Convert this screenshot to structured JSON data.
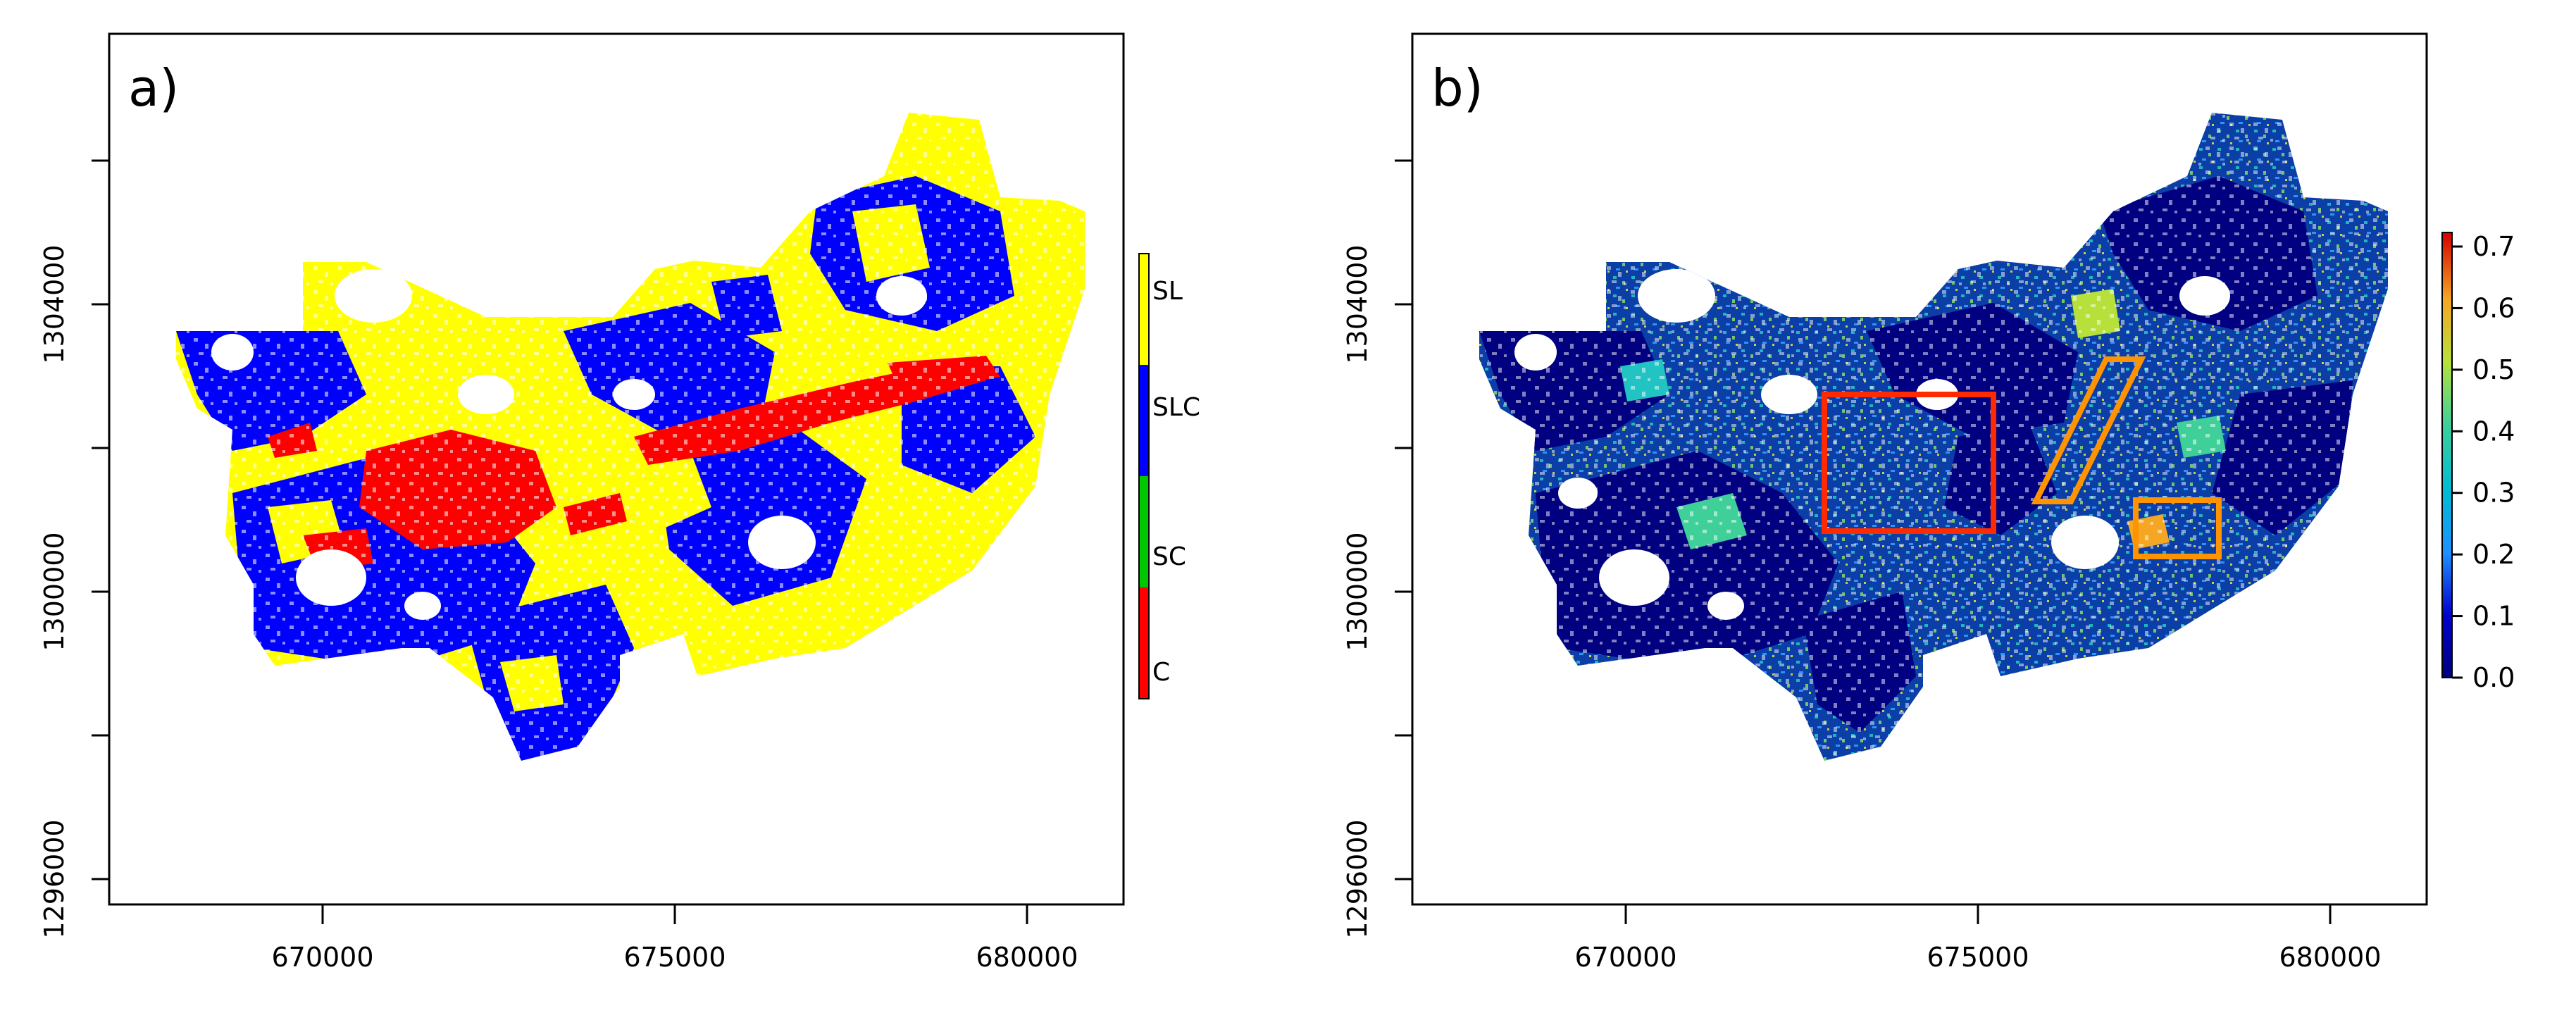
{
  "panels": [
    {
      "label": "a)",
      "type": "categorical",
      "x_ticks": [
        "670000",
        "675000",
        "680000"
      ],
      "y_ticks": [
        "1296000",
        "1300000",
        "1304000"
      ],
      "legend": {
        "entries": [
          {
            "label": "SL",
            "color": "#ffff00"
          },
          {
            "label": "SLC",
            "color": "#0000ff"
          },
          {
            "label": "SC",
            "color": "#00c800"
          },
          {
            "label": "C",
            "color": "#ff0000"
          }
        ]
      }
    },
    {
      "label": "b)",
      "type": "continuous",
      "x_ticks": [
        "670000",
        "675000",
        "680000"
      ],
      "y_ticks": [
        "1296000",
        "1300000",
        "1304000"
      ],
      "legend": {
        "ticks": [
          "0.0",
          "0.1",
          "0.2",
          "0.3",
          "0.4",
          "0.5",
          "0.6",
          "0.7"
        ],
        "colors": [
          "#000080",
          "#0000cd",
          "#1e90ff",
          "#00bcd4",
          "#3fd09a",
          "#b7e13a",
          "#f5a623",
          "#d40000"
        ]
      },
      "highlight_boxes": [
        {
          "shape": "rectangle",
          "color": "#ff2a00"
        },
        {
          "shape": "parallelogram",
          "color": "#ff9400"
        },
        {
          "shape": "rectangle",
          "color": "#ff9400"
        }
      ]
    }
  ]
}
